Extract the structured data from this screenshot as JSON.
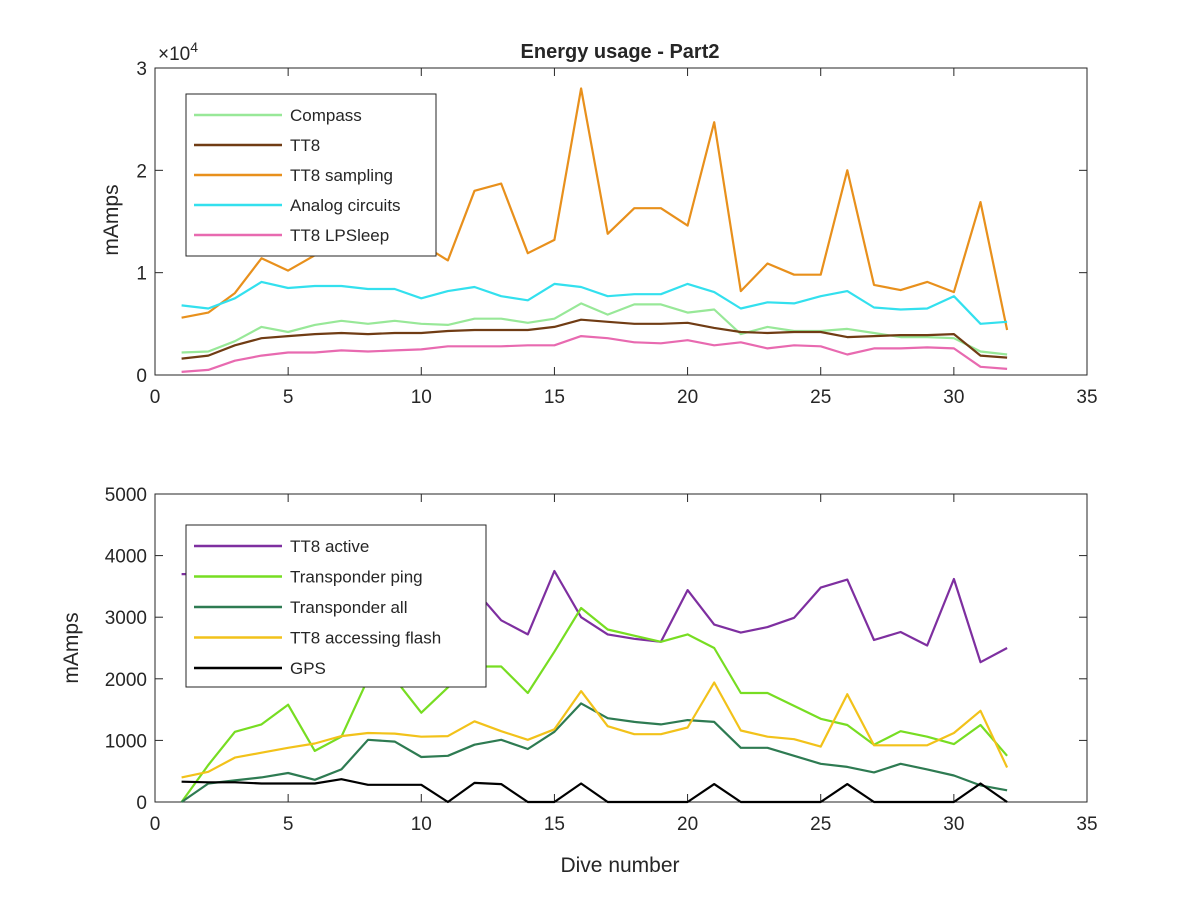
{
  "chart_data": [
    {
      "type": "line",
      "title": "Energy usage - Part2",
      "xlabel": "",
      "ylabel": "mAmps",
      "exponent_label": "×10",
      "exponent_power": "4",
      "xlim": [
        0,
        35
      ],
      "ylim": [
        0,
        30000
      ],
      "xticks": [
        0,
        5,
        10,
        15,
        20,
        25,
        30,
        35
      ],
      "yticks": [
        0,
        10000,
        20000,
        30000
      ],
      "ytick_labels": [
        "0",
        "1",
        "2",
        "3"
      ],
      "legend_position": "top-left",
      "grid": false,
      "x": [
        1,
        2,
        3,
        4,
        5,
        6,
        7,
        8,
        9,
        10,
        11,
        12,
        13,
        14,
        15,
        16,
        17,
        18,
        19,
        20,
        21,
        22,
        23,
        24,
        25,
        26,
        27,
        28,
        29,
        30,
        31,
        32
      ],
      "series": [
        {
          "name": "Compass",
          "color": "#98e898",
          "values": [
            2200,
            2300,
            3300,
            4700,
            4200,
            4900,
            5300,
            5000,
            5300,
            5000,
            4900,
            5500,
            5500,
            5100,
            5500,
            7000,
            5900,
            6900,
            6900,
            6100,
            6400,
            4000,
            4700,
            4300,
            4300,
            4500,
            4100,
            3700,
            3700,
            3600,
            2300,
            2000
          ]
        },
        {
          "name": "TT8",
          "color": "#703c14",
          "values": [
            1600,
            1900,
            2900,
            3600,
            3800,
            4000,
            4100,
            4000,
            4100,
            4100,
            4300,
            4400,
            4400,
            4400,
            4700,
            5400,
            5200,
            5000,
            5000,
            5100,
            4600,
            4200,
            4100,
            4200,
            4200,
            3700,
            3800,
            3900,
            3900,
            4000,
            1900,
            1700
          ]
        },
        {
          "name": "TT8 sampling",
          "color": "#e8901c",
          "values": [
            5600,
            6100,
            8000,
            11400,
            10200,
            11700,
            13100,
            12900,
            13000,
            12800,
            11200,
            18000,
            18700,
            11900,
            13200,
            28000,
            13800,
            16300,
            16300,
            14600,
            24700,
            8200,
            10900,
            9800,
            9800,
            20000,
            8800,
            8300,
            9100,
            8100,
            16900,
            4400
          ]
        },
        {
          "name": "Analog circuits",
          "color": "#33e0ee",
          "values": [
            6800,
            6500,
            7500,
            9100,
            8500,
            8700,
            8700,
            8400,
            8400,
            7500,
            8200,
            8600,
            7700,
            7300,
            8900,
            8600,
            7700,
            7900,
            7900,
            8900,
            8100,
            6500,
            7100,
            7000,
            7700,
            8200,
            6600,
            6400,
            6500,
            7700,
            5000,
            5200
          ]
        },
        {
          "name": "TT8 LPSleep",
          "color": "#e86ab0",
          "values": [
            300,
            500,
            1400,
            1900,
            2200,
            2200,
            2400,
            2300,
            2400,
            2500,
            2800,
            2800,
            2800,
            2900,
            2900,
            3800,
            3600,
            3200,
            3100,
            3400,
            2900,
            3200,
            2600,
            2900,
            2800,
            2000,
            2600,
            2600,
            2700,
            2600,
            800,
            600
          ]
        }
      ]
    },
    {
      "type": "line",
      "title": "",
      "xlabel": "Dive number",
      "ylabel": "mAmps",
      "xlim": [
        0,
        35
      ],
      "ylim": [
        0,
        5000
      ],
      "xticks": [
        0,
        5,
        10,
        15,
        20,
        25,
        30,
        35
      ],
      "yticks": [
        0,
        1000,
        2000,
        3000,
        4000,
        5000
      ],
      "ytick_labels": [
        "0",
        "1000",
        "2000",
        "3000",
        "4000",
        "5000"
      ],
      "legend_position": "top-left",
      "grid": false,
      "x": [
        1,
        2,
        3,
        4,
        5,
        6,
        7,
        8,
        9,
        10,
        11,
        12,
        13,
        14,
        15,
        16,
        17,
        18,
        19,
        20,
        21,
        22,
        23,
        24,
        25,
        26,
        27,
        28,
        29,
        30,
        31,
        32
      ],
      "series": [
        {
          "name": "TT8 active",
          "color": "#7e2fa0",
          "values": [
            3700,
            3700,
            3600,
            3500,
            3500,
            3500,
            3500,
            3500,
            3500,
            3500,
            3500,
            3450,
            2950,
            2720,
            3750,
            3000,
            2720,
            2650,
            2600,
            3440,
            2880,
            2750,
            2840,
            2990,
            3480,
            3610,
            2630,
            2760,
            2540,
            3620,
            2270,
            2500
          ]
        },
        {
          "name": "Transponder ping",
          "color": "#77dd22",
          "values": [
            0,
            600,
            1140,
            1260,
            1580,
            830,
            1060,
            2000,
            2000,
            1450,
            1860,
            2200,
            2200,
            1770,
            2440,
            3150,
            2800,
            2700,
            2600,
            2720,
            2500,
            1770,
            1770,
            1560,
            1350,
            1250,
            930,
            1150,
            1060,
            940,
            1250,
            750
          ]
        },
        {
          "name": "Transponder all",
          "color": "#2e7b52",
          "values": [
            0,
            300,
            350,
            400,
            470,
            360,
            530,
            1010,
            980,
            730,
            750,
            930,
            1010,
            860,
            1140,
            1600,
            1360,
            1300,
            1260,
            1330,
            1300,
            880,
            880,
            750,
            620,
            570,
            480,
            620,
            530,
            430,
            270,
            190
          ]
        },
        {
          "name": "TT8 accessing flash",
          "color": "#f2c21a",
          "values": [
            400,
            490,
            720,
            800,
            880,
            950,
            1070,
            1120,
            1110,
            1060,
            1070,
            1310,
            1150,
            1010,
            1180,
            1800,
            1230,
            1100,
            1100,
            1210,
            1940,
            1160,
            1060,
            1020,
            900,
            1750,
            920,
            920,
            920,
            1120,
            1480,
            560
          ]
        },
        {
          "name": "GPS",
          "color": "#000000",
          "values": [
            330,
            320,
            320,
            300,
            300,
            300,
            370,
            280,
            280,
            280,
            0,
            310,
            290,
            0,
            0,
            300,
            0,
            0,
            0,
            0,
            290,
            0,
            0,
            0,
            0,
            290,
            0,
            0,
            0,
            0,
            300,
            0
          ]
        }
      ]
    }
  ]
}
